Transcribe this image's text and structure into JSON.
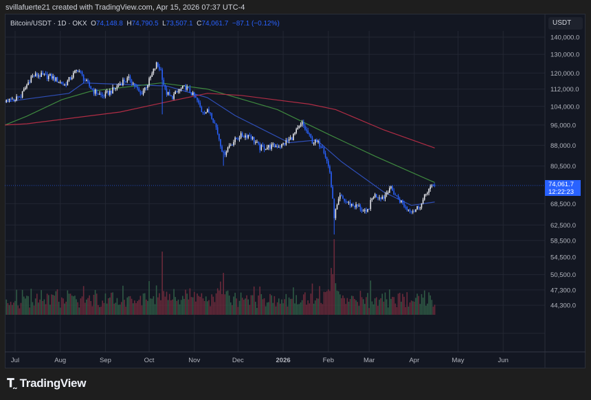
{
  "attribution": "svillafuerte21 created with TradingView.com, Apr 15, 2026 07:37 UTC-4",
  "legend": {
    "symbol": "Bitcoin/USDT · 1D · OKX",
    "open_label": "O",
    "open": "74,148.8",
    "high_label": "H",
    "high": "74,790.5",
    "low_label": "L",
    "low": "73,507.1",
    "close_label": "C",
    "close": "74,061.7",
    "change": "−87.1 (−0.12%)"
  },
  "price_axis": {
    "currency": "USDT",
    "current_price": "74,061.7",
    "countdown": "12:22:23"
  },
  "logo": {
    "mark": "TV",
    "text": "TradingView"
  },
  "colors": {
    "up_candle": "#e8e9ee",
    "down_candle": "#2962ff",
    "ma_fast": "#2f4fb8",
    "ma_mid": "#3f8a3f",
    "ma_slow": "#b22d45",
    "volume_up": "#2f5a45",
    "volume_down": "#6b2a3b",
    "price_tag": "#2962ff"
  },
  "chart_data": {
    "type": "candlestick",
    "title": "Bitcoin/USDT · 1D · OKX",
    "y_scale": "log",
    "ylim": [
      41000,
      150000
    ],
    "grid": true,
    "y_ticks": [
      140000,
      130000,
      120000,
      112000,
      104000,
      96000,
      88000,
      80500,
      68500,
      62500,
      58500,
      54500,
      50500,
      47300,
      44300
    ],
    "y_tick_labels": [
      "140,000.0",
      "130,000.0",
      "120,000.0",
      "112,000.0",
      "104,000.0",
      "96,000.0",
      "88,000.0",
      "80,500.0",
      "68,500.0",
      "62,500.0",
      "58,500.0",
      "54,500.0",
      "50,500.0",
      "47,300.0",
      "44,300.0"
    ],
    "x_ticks": [
      {
        "date": "2025-07-01",
        "label": "Jul"
      },
      {
        "date": "2025-08-01",
        "label": "Aug"
      },
      {
        "date": "2025-09-01",
        "label": "Sep"
      },
      {
        "date": "2025-10-01",
        "label": "Oct"
      },
      {
        "date": "2025-11-01",
        "label": "Nov"
      },
      {
        "date": "2025-12-01",
        "label": "Dec"
      },
      {
        "date": "2026-01-01",
        "label": "2026",
        "bold": true
      },
      {
        "date": "2026-02-01",
        "label": "Feb"
      },
      {
        "date": "2026-03-01",
        "label": "Mar"
      },
      {
        "date": "2026-04-01",
        "label": "Apr"
      },
      {
        "date": "2026-05-01",
        "label": "May"
      },
      {
        "date": "2026-06-01",
        "label": "Jun"
      }
    ],
    "xlim": [
      "2025-06-24",
      "2026-06-26"
    ],
    "approx_closes": [
      [
        "2025-06-25",
        106000
      ],
      [
        "2025-07-05",
        108700
      ],
      [
        "2025-07-12",
        118000
      ],
      [
        "2025-07-16",
        119000
      ],
      [
        "2025-07-26",
        118000
      ],
      [
        "2025-08-04",
        114000
      ],
      [
        "2025-08-13",
        122000
      ],
      [
        "2025-08-19",
        115000
      ],
      [
        "2025-08-24",
        111000
      ],
      [
        "2025-08-30",
        108700
      ],
      [
        "2025-09-06",
        111500
      ],
      [
        "2025-09-13",
        116000
      ],
      [
        "2025-09-18",
        117000
      ],
      [
        "2025-09-25",
        109500
      ],
      [
        "2025-09-30",
        114500
      ],
      [
        "2025-10-06",
        124500
      ],
      [
        "2025-10-09",
        121500
      ],
      [
        "2025-10-12",
        111000
      ],
      [
        "2025-10-16",
        108000
      ],
      [
        "2025-10-22",
        111500
      ],
      [
        "2025-10-26",
        113000
      ],
      [
        "2025-10-30",
        110000
      ],
      [
        "2025-11-03",
        106500
      ],
      [
        "2025-11-06",
        102000
      ],
      [
        "2025-11-12",
        101500
      ],
      [
        "2025-11-16",
        95000
      ],
      [
        "2025-11-21",
        84500
      ],
      [
        "2025-11-25",
        88000
      ],
      [
        "2025-12-02",
        91500
      ],
      [
        "2025-12-09",
        92000
      ],
      [
        "2025-12-16",
        87000
      ],
      [
        "2025-12-23",
        87500
      ],
      [
        "2025-12-31",
        88000
      ],
      [
        "2026-01-07",
        91000
      ],
      [
        "2026-01-14",
        96500
      ],
      [
        "2026-01-21",
        89500
      ],
      [
        "2026-01-28",
        88000
      ],
      [
        "2026-02-02",
        78500
      ],
      [
        "2026-02-05",
        65000
      ],
      [
        "2026-02-09",
        70500
      ],
      [
        "2026-02-15",
        68500
      ],
      [
        "2026-02-22",
        67500
      ],
      [
        "2026-02-27",
        65500
      ],
      [
        "2026-03-04",
        71000
      ],
      [
        "2026-03-11",
        70500
      ],
      [
        "2026-03-15",
        73500
      ],
      [
        "2026-03-20",
        70500
      ],
      [
        "2026-03-27",
        67000
      ],
      [
        "2026-04-01",
        66500
      ],
      [
        "2026-04-06",
        68500
      ],
      [
        "2026-04-10",
        72500
      ],
      [
        "2026-04-15",
        74061.7
      ]
    ],
    "notable_lows": [
      [
        "2025-10-10",
        100500
      ],
      [
        "2025-11-21",
        80600
      ],
      [
        "2026-02-05",
        60000
      ]
    ],
    "moving_averages": [
      {
        "color_key": "ma_fast",
        "points": [
          [
            "2025-06-24",
            106000
          ],
          [
            "2025-08-07",
            110000
          ],
          [
            "2025-08-17",
            115000
          ],
          [
            "2025-10-13",
            113500
          ],
          [
            "2025-11-10",
            108000
          ],
          [
            "2025-11-29",
            100000
          ],
          [
            "2026-01-05",
            89000
          ],
          [
            "2026-01-24",
            90000
          ],
          [
            "2026-02-10",
            82000
          ],
          [
            "2026-03-11",
            72000
          ],
          [
            "2026-03-30",
            68000
          ],
          [
            "2026-04-15",
            69000
          ]
        ]
      },
      {
        "color_key": "ma_mid",
        "points": [
          [
            "2025-06-24",
            96000
          ],
          [
            "2025-07-09",
            99700
          ],
          [
            "2025-08-02",
            107000
          ],
          [
            "2025-08-22",
            111000
          ],
          [
            "2025-10-09",
            115000
          ],
          [
            "2025-11-10",
            112000
          ],
          [
            "2025-12-28",
            102600
          ],
          [
            "2026-02-02",
            92000
          ],
          [
            "2026-03-05",
            84000
          ],
          [
            "2026-04-15",
            75000
          ]
        ]
      },
      {
        "color_key": "ma_slow",
        "points": [
          [
            "2025-06-24",
            96000
          ],
          [
            "2025-07-09",
            96500
          ],
          [
            "2025-09-11",
            101500
          ],
          [
            "2025-10-13",
            106000
          ],
          [
            "2025-11-10",
            110000
          ],
          [
            "2025-12-03",
            109000
          ],
          [
            "2026-01-19",
            105000
          ],
          [
            "2026-02-06",
            102600
          ],
          [
            "2026-03-11",
            94000
          ],
          [
            "2026-04-15",
            87000
          ]
        ]
      }
    ]
  }
}
